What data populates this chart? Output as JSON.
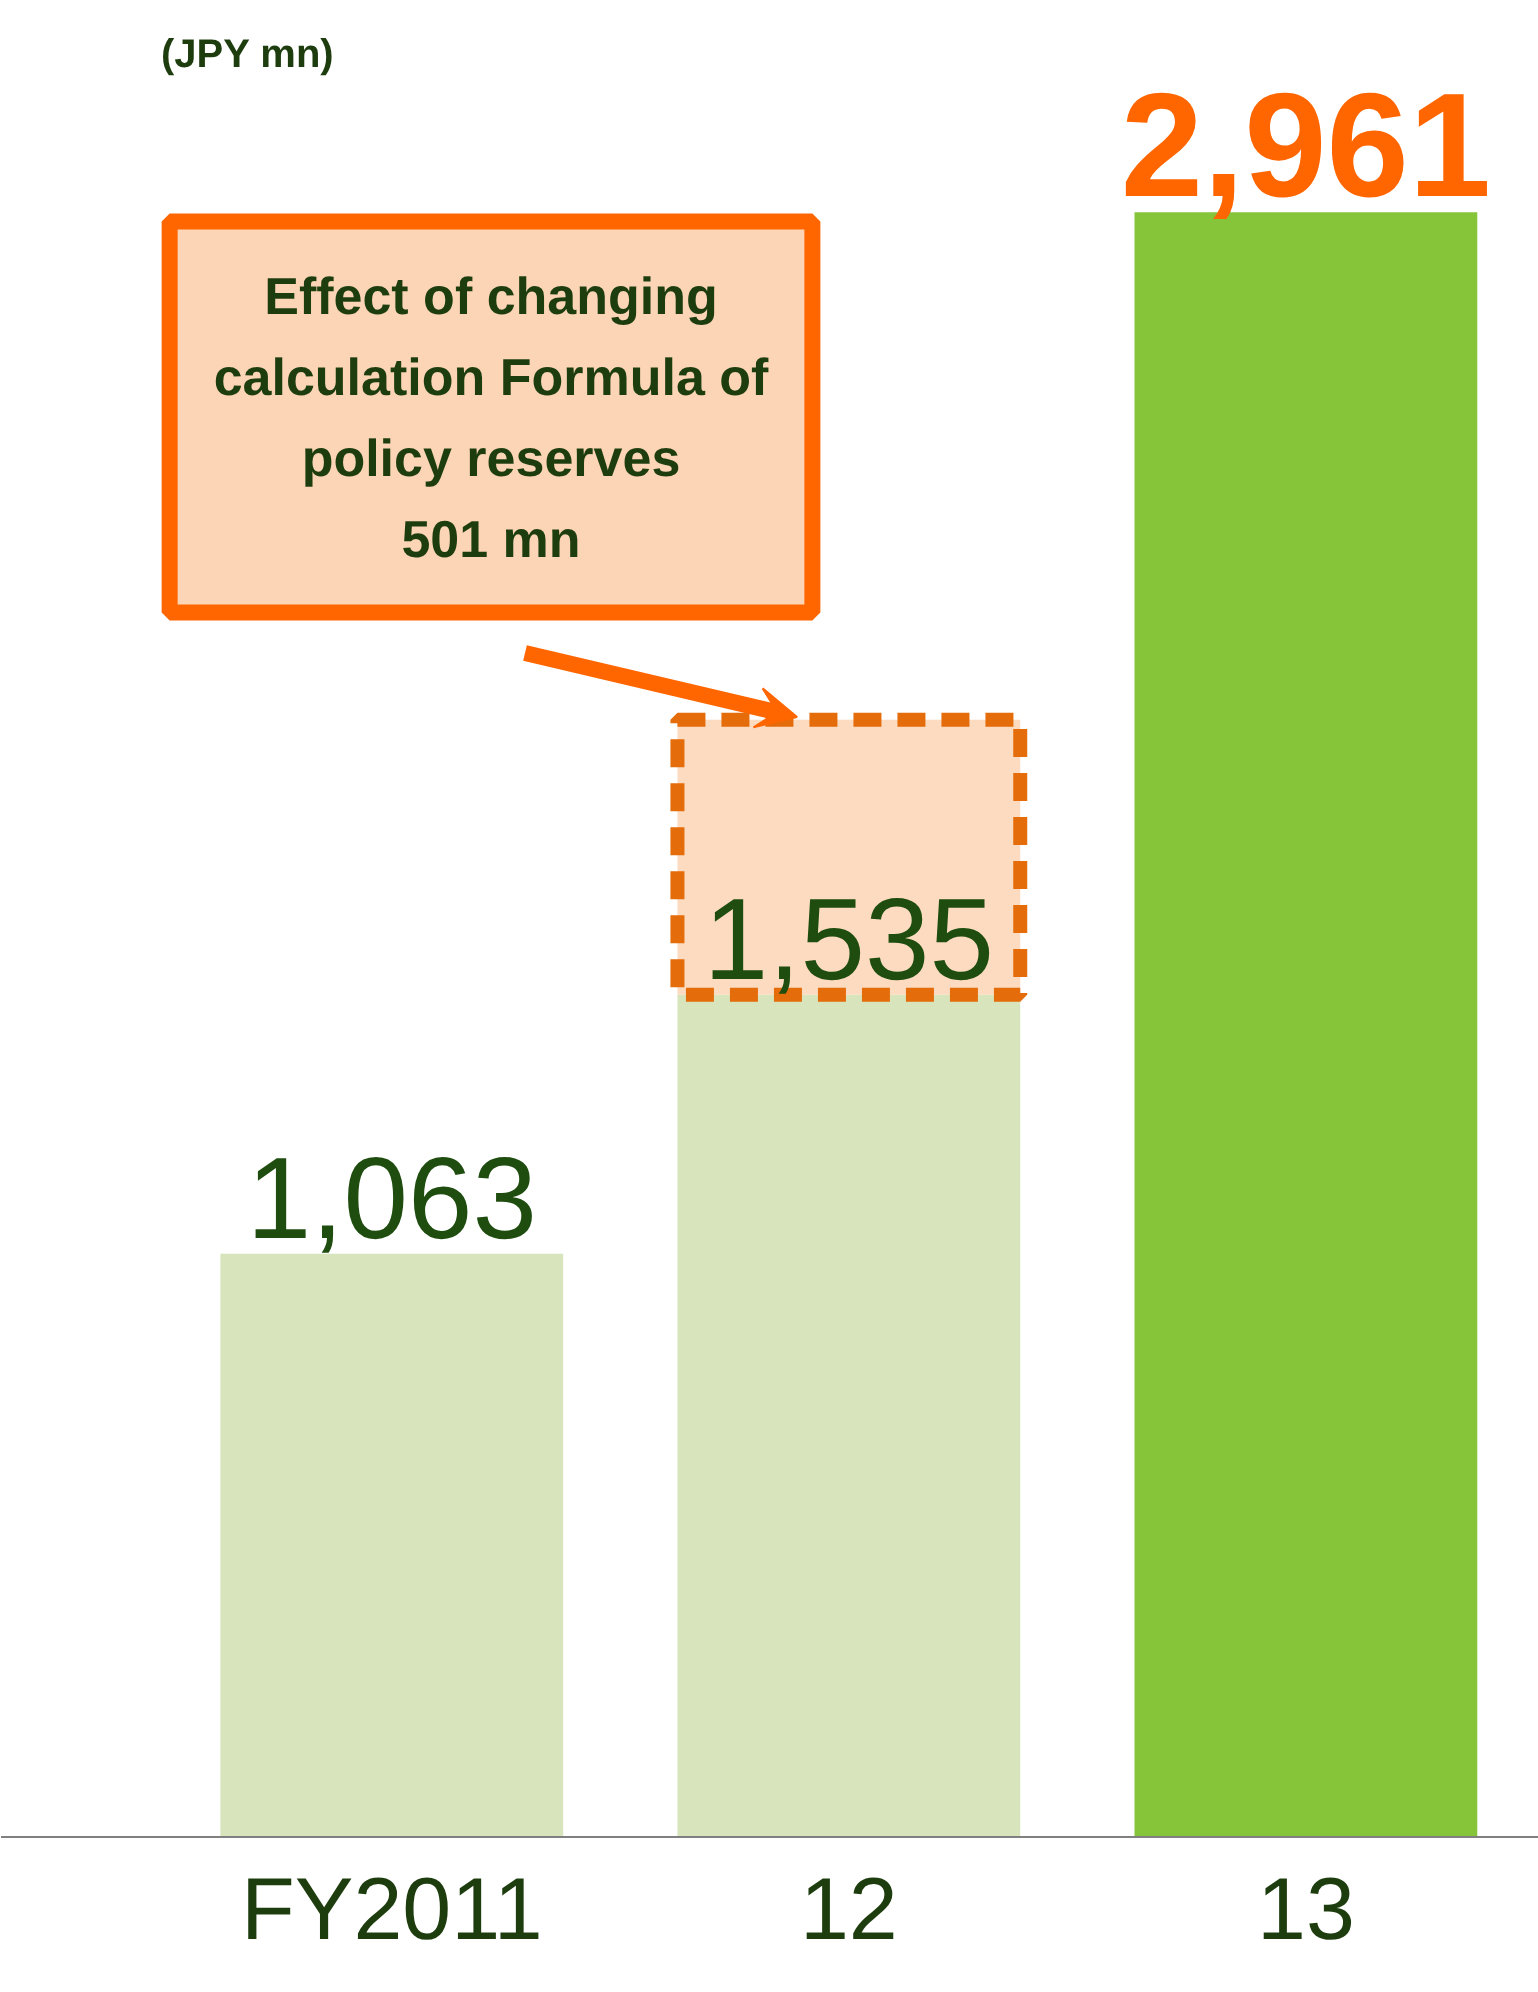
{
  "chart_data": {
    "type": "bar",
    "ylabel": "(JPY mn)",
    "categories": [
      "FY2011",
      "12",
      "13"
    ],
    "stacked": true,
    "series": [
      {
        "colors": [
          "#d8e4bc",
          "#d8e4bc",
          "#86c53a"
        ],
        "values": [
          1063,
          1535,
          2961
        ],
        "value_labels": [
          "1,063",
          "1,535",
          "2,961"
        ]
      },
      {
        "color": "#fbd5b5",
        "values": [
          null,
          501,
          null
        ],
        "line_style": "dashed"
      }
    ],
    "annotations": [
      "Effect of changing\ncalculation Formula of\npolicy reserves\n501 mn"
    ],
    "grid": false
  }
}
